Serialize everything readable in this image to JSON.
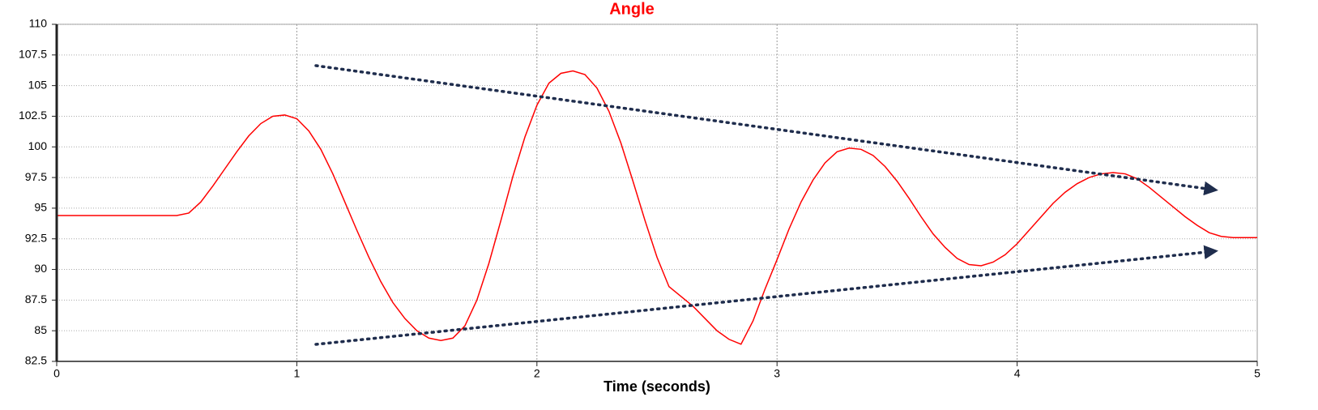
{
  "chart_data": {
    "type": "line",
    "title": "Angle",
    "xlabel": "Time (seconds)",
    "x": [
      0,
      0.5,
      0.55,
      0.6,
      0.65,
      0.7,
      0.75,
      0.8,
      0.85,
      0.9,
      0.95,
      1.0,
      1.05,
      1.1,
      1.15,
      1.2,
      1.25,
      1.3,
      1.35,
      1.4,
      1.45,
      1.5,
      1.55,
      1.6,
      1.65,
      1.7,
      1.75,
      1.8,
      1.85,
      1.9,
      1.95,
      2.0,
      2.05,
      2.1,
      2.15,
      2.2,
      2.25,
      2.3,
      2.35,
      2.4,
      2.45,
      2.5,
      2.55,
      2.6,
      2.65,
      2.7,
      2.75,
      2.8,
      2.85,
      2.9,
      2.95,
      3.0,
      3.05,
      3.1,
      3.15,
      3.2,
      3.25,
      3.3,
      3.35,
      3.4,
      3.45,
      3.5,
      3.55,
      3.6,
      3.65,
      3.7,
      3.75,
      3.8,
      3.85,
      3.9,
      3.95,
      4.0,
      4.05,
      4.1,
      4.15,
      4.2,
      4.25,
      4.3,
      4.35,
      4.4,
      4.45,
      4.5,
      4.55,
      4.6,
      4.65,
      4.7,
      4.75,
      4.8,
      4.85,
      4.9,
      5.0
    ],
    "values": [
      94.4,
      94.4,
      94.6,
      95.5,
      96.8,
      98.2,
      99.6,
      100.9,
      101.9,
      102.5,
      102.6,
      102.3,
      101.3,
      99.8,
      97.8,
      95.5,
      93.2,
      91.0,
      89.0,
      87.3,
      86.0,
      85.0,
      84.4,
      84.2,
      84.4,
      85.4,
      87.5,
      90.5,
      94.0,
      97.6,
      100.8,
      103.4,
      105.2,
      106.0,
      106.2,
      105.9,
      104.8,
      102.9,
      100.3,
      97.2,
      94.0,
      91.0,
      88.6,
      87.8,
      87.0,
      86.0,
      85.0,
      84.3,
      83.9,
      85.8,
      88.4,
      90.8,
      93.3,
      95.5,
      97.3,
      98.7,
      99.6,
      99.9,
      99.8,
      99.3,
      98.4,
      97.2,
      95.8,
      94.3,
      92.9,
      91.8,
      90.9,
      90.4,
      90.3,
      90.6,
      91.2,
      92.1,
      93.2,
      94.3,
      95.4,
      96.3,
      97.0,
      97.5,
      97.8,
      97.9,
      97.8,
      97.4,
      96.7,
      95.9,
      95.1,
      94.3,
      93.6,
      93.0,
      92.7,
      92.6,
      92.6
    ],
    "color": "#ff0000",
    "xlim": [
      0,
      5
    ],
    "xticks": [
      0,
      1,
      2,
      3,
      4,
      5
    ],
    "ylim": [
      82.5,
      110
    ],
    "yticks": [
      82.5,
      85,
      87.5,
      90,
      92.5,
      95,
      97.5,
      100,
      102.5,
      105,
      107.5,
      110
    ],
    "grid": true
  }
}
